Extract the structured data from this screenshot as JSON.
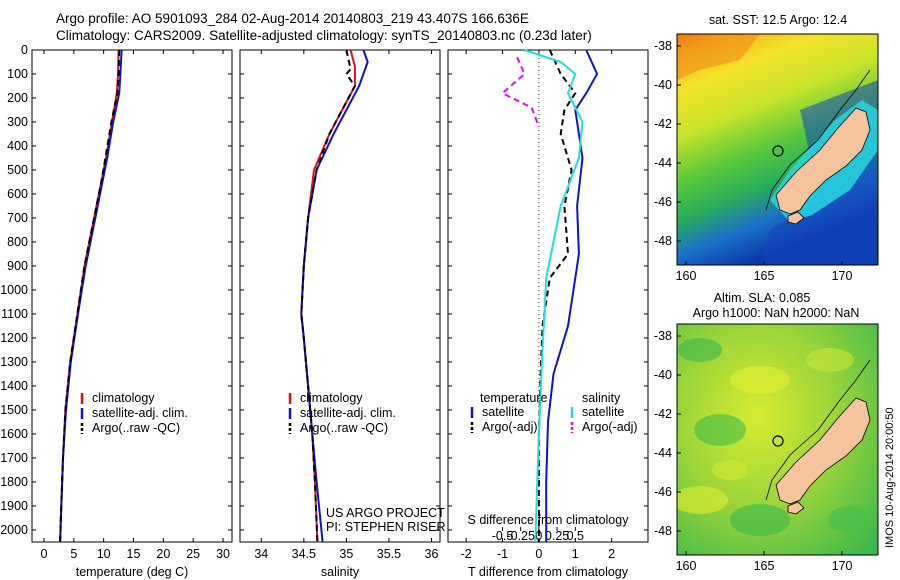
{
  "header": {
    "line1": "Argo profile: AO 5901093_284 02-Aug-2014 20140803_219 43.407S 166.636E",
    "line2": "Climatology: CARS2009. Satellite-adjusted climatology: synTS_20140803.nc (0.23d later)"
  },
  "y_ticks": [
    0,
    100,
    200,
    300,
    400,
    500,
    600,
    700,
    800,
    900,
    1000,
    1100,
    1200,
    1300,
    1400,
    1500,
    1600,
    1700,
    1800,
    1900,
    2000
  ],
  "chart_data": [
    {
      "type": "line",
      "panel": "temperature",
      "xlabel": "temperature (deg C)",
      "xlim": [
        -2,
        31.5
      ],
      "ylim": [
        2050,
        0
      ],
      "y_reversed": true,
      "x_ticks": [
        0,
        5,
        10,
        15,
        20,
        25,
        30
      ],
      "x_tick_labels": [
        "0",
        "5",
        "10",
        "15",
        "20",
        "25",
        "30"
      ],
      "legend": [
        "climatology",
        "satellite-adj. clim.",
        "Argo(..raw -QC)"
      ],
      "legend_position": "lower-center",
      "series": [
        {
          "name": "climatology",
          "color": "#dd1111",
          "dash": "solid",
          "points": [
            [
              12.5,
              0
            ],
            [
              12.4,
              100
            ],
            [
              12.2,
              180
            ],
            [
              11.4,
              300
            ],
            [
              10.4,
              450
            ],
            [
              9.6,
              550
            ],
            [
              8.4,
              700
            ],
            [
              6.8,
              900
            ],
            [
              5.6,
              1100
            ],
            [
              4.4,
              1300
            ],
            [
              3.6,
              1500
            ],
            [
              3.2,
              1700
            ],
            [
              2.9,
              1900
            ],
            [
              2.7,
              2050
            ]
          ]
        },
        {
          "name": "satellite-adj. clim.",
          "color": "#1111cc",
          "dash": "solid",
          "points": [
            [
              13.0,
              0
            ],
            [
              12.8,
              100
            ],
            [
              12.6,
              180
            ],
            [
              11.6,
              300
            ],
            [
              10.6,
              450
            ],
            [
              9.8,
              550
            ],
            [
              8.6,
              700
            ],
            [
              7.0,
              900
            ],
            [
              5.7,
              1100
            ],
            [
              4.5,
              1300
            ],
            [
              3.7,
              1500
            ],
            [
              3.2,
              1700
            ],
            [
              2.9,
              1900
            ],
            [
              2.7,
              2050
            ]
          ]
        },
        {
          "name": "Argo(..raw -QC)",
          "color": "#000000",
          "dash": "6,4",
          "points": [
            [
              12.6,
              0
            ],
            [
              12.5,
              100
            ],
            [
              12.3,
              180
            ],
            [
              11.3,
              300
            ],
            [
              10.3,
              450
            ],
            [
              9.6,
              550
            ],
            [
              8.4,
              700
            ],
            [
              6.8,
              900
            ],
            [
              5.6,
              1100
            ],
            [
              4.4,
              1300
            ],
            [
              3.6,
              1500
            ],
            [
              3.2,
              1700
            ],
            [
              2.9,
              1900
            ],
            [
              2.7,
              2050
            ]
          ]
        }
      ]
    },
    {
      "type": "line",
      "panel": "salinity",
      "xlabel": "salinity",
      "xlim": [
        33.75,
        36.1
      ],
      "ylim": [
        2050,
        0
      ],
      "y_reversed": true,
      "x_ticks": [
        34,
        34.5,
        35,
        35.5,
        36
      ],
      "x_tick_labels": [
        "34",
        "34.5",
        "35",
        "35.5",
        "36"
      ],
      "legend": [
        "climatology",
        "satellite-adj. clim.",
        "Argo(..raw -QC)"
      ],
      "legend_position": "lower-center",
      "annotation": [
        "US ARGO PROJECT",
        "PI: STEPHEN RISER"
      ],
      "series": [
        {
          "name": "climatology",
          "color": "#dd1111",
          "dash": "solid",
          "points": [
            [
              35.05,
              0
            ],
            [
              35.1,
              70
            ],
            [
              35.1,
              150
            ],
            [
              34.95,
              250
            ],
            [
              34.8,
              350
            ],
            [
              34.62,
              500
            ],
            [
              34.55,
              700
            ],
            [
              34.5,
              900
            ],
            [
              34.47,
              1100
            ],
            [
              34.5,
              1200
            ],
            [
              34.55,
              1400
            ],
            [
              34.6,
              1600
            ],
            [
              34.63,
              1800
            ],
            [
              34.66,
              2050
            ]
          ]
        },
        {
          "name": "satellite-adj. clim.",
          "color": "#1111cc",
          "dash": "solid",
          "points": [
            [
              35.2,
              0
            ],
            [
              35.25,
              50
            ],
            [
              35.15,
              150
            ],
            [
              35.0,
              250
            ],
            [
              34.85,
              350
            ],
            [
              34.65,
              500
            ],
            [
              34.55,
              700
            ],
            [
              34.5,
              900
            ],
            [
              34.47,
              1100
            ],
            [
              34.5,
              1200
            ],
            [
              34.55,
              1400
            ],
            [
              34.6,
              1600
            ],
            [
              34.65,
              1800
            ],
            [
              34.72,
              2050
            ]
          ]
        },
        {
          "name": "Argo(..raw -QC)",
          "color": "#000000",
          "dash": "6,4",
          "points": [
            [
              35.0,
              0
            ],
            [
              35.05,
              80
            ],
            [
              35.0,
              100
            ],
            [
              35.1,
              150
            ],
            [
              34.95,
              250
            ],
            [
              34.8,
              350
            ],
            [
              34.65,
              500
            ],
            [
              34.55,
              700
            ],
            [
              34.5,
              900
            ],
            [
              34.47,
              1100
            ],
            [
              34.5,
              1200
            ],
            [
              34.55,
              1400
            ],
            [
              34.6,
              1600
            ],
            [
              34.63,
              1800
            ],
            [
              34.66,
              2050
            ]
          ]
        }
      ]
    },
    {
      "type": "line",
      "panel": "differences",
      "xlabel": "T difference from climatology",
      "xlabel_top": "S difference from climatology",
      "xlim": [
        -2.5,
        3.0
      ],
      "ylim": [
        2050,
        0
      ],
      "y_reversed": true,
      "x_ticks": [
        -2,
        -1,
        0,
        1,
        2
      ],
      "x_tick_labels": [
        "-2",
        "-1",
        "0",
        "1",
        "2"
      ],
      "s_ticks": [
        -0.5,
        -0.25,
        0,
        0.25,
        0.5
      ],
      "s_tick_labels": [
        "-0.5",
        "-0.25",
        "0",
        "0.25",
        "0.5"
      ],
      "legend_headers": [
        "temperature",
        "salinity"
      ],
      "legend": [
        "satellite",
        "Argo(-adj)",
        "satellite",
        "Argo(-adj)"
      ],
      "legend_position": "lower-center",
      "series": [
        {
          "name": "satellite",
          "group": "temperature",
          "color": "#1111cc",
          "dash": "solid",
          "points": [
            [
              1.3,
              0
            ],
            [
              1.6,
              100
            ],
            [
              1.3,
              180
            ],
            [
              1.0,
              250
            ],
            [
              1.2,
              450
            ],
            [
              1.05,
              650
            ],
            [
              1.1,
              850
            ],
            [
              1.0,
              950
            ],
            [
              0.8,
              1150
            ],
            [
              0.4,
              1350
            ],
            [
              0.25,
              1550
            ],
            [
              0.2,
              1800
            ],
            [
              0.2,
              2050
            ]
          ]
        },
        {
          "name": "Argo(-adj)",
          "group": "temperature",
          "color": "#000000",
          "dash": "6,4",
          "points": [
            [
              0.3,
              0
            ],
            [
              0.6,
              100
            ],
            [
              1.0,
              180
            ],
            [
              0.7,
              250
            ],
            [
              0.6,
              350
            ],
            [
              0.9,
              500
            ],
            [
              0.7,
              650
            ],
            [
              0.8,
              850
            ],
            [
              0.3,
              950
            ],
            [
              0.1,
              1150
            ],
            [
              0.05,
              1350
            ],
            [
              0.0,
              1600
            ],
            [
              0.0,
              2050
            ]
          ]
        },
        {
          "name": "satellite",
          "group": "salinity",
          "color": "#22dddd",
          "dash": "solid",
          "points": [
            [
              -0.2,
              0
            ],
            [
              0.3,
              50
            ],
            [
              0.5,
              100
            ],
            [
              0.4,
              180
            ],
            [
              0.6,
              300
            ],
            [
              0.55,
              450
            ],
            [
              0.3,
              650
            ],
            [
              0.1,
              950
            ],
            [
              0.05,
              1250
            ],
            [
              0.0,
              1600
            ],
            [
              -0.05,
              2050
            ]
          ]
        },
        {
          "name": "Argo(-adj)",
          "group": "salinity",
          "color": "#dd11dd",
          "dash": "6,4",
          "points": [
            [
              -0.3,
              30
            ],
            [
              -0.2,
              100
            ],
            [
              -0.5,
              180
            ],
            [
              -0.1,
              240
            ],
            [
              0.0,
              320
            ]
          ]
        }
      ]
    }
  ],
  "maps": {
    "top_title": "sat. SST: 12.5 Argo: 12.4",
    "bottom_title_1": "Altim. SLA: 0.085",
    "bottom_title_2": "Argo h1000: NaN h2000: NaN",
    "lat_ticks": [
      "-38",
      "-40",
      "-42",
      "-44",
      "-46",
      "-48"
    ],
    "lon_ticks": [
      "160",
      "165",
      "170"
    ],
    "land_color": "#f5c39e"
  },
  "watermark": "IMOS 10-Aug-2014 20:00:50"
}
